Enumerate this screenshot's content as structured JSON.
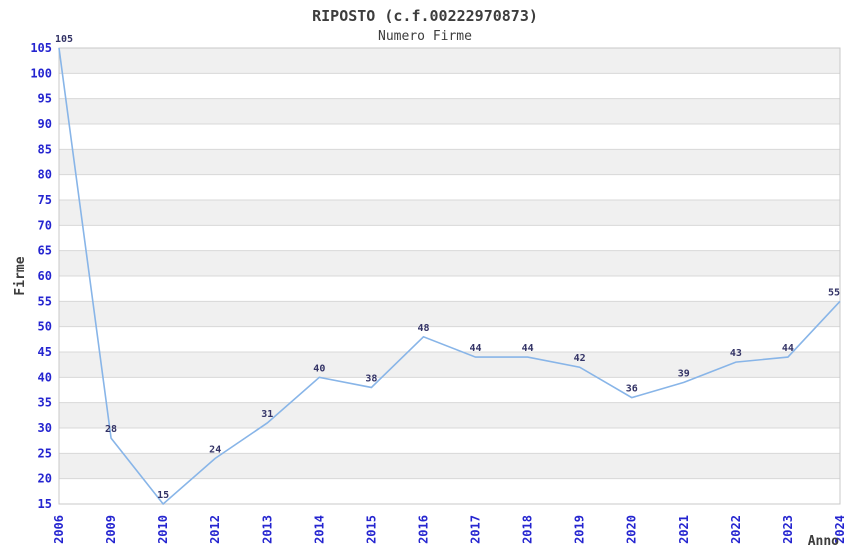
{
  "page": {
    "background": "#ffffff"
  },
  "chart_data": {
    "type": "line",
    "title": "RIPOSTO (c.f.00222970873)",
    "subtitle": "Numero Firme",
    "xlabel": "Anno",
    "ylabel": "Firme",
    "categories": [
      "2006",
      "2009",
      "2010",
      "2012",
      "2013",
      "2014",
      "2015",
      "2016",
      "2017",
      "2018",
      "2019",
      "2020",
      "2021",
      "2022",
      "2023",
      "2024"
    ],
    "values": [
      105,
      28,
      15,
      24,
      31,
      40,
      38,
      48,
      44,
      44,
      42,
      36,
      39,
      43,
      44,
      55
    ],
    "ylim": [
      15,
      105
    ],
    "ytick_step": 5,
    "legend": "none",
    "grid": "horizontal gridlines every 5 units with alternating shaded bands every 10",
    "x_tick_rotation": -90,
    "colors": {
      "line": "#88b5e8",
      "axis_tick_label": "#2525d0",
      "data_label": "#333366",
      "band_fill": "#f0f0f0",
      "gridline": "#d8d8d8",
      "plot_border": "#c8c8c8",
      "title_text": "#3d3d3d"
    }
  }
}
